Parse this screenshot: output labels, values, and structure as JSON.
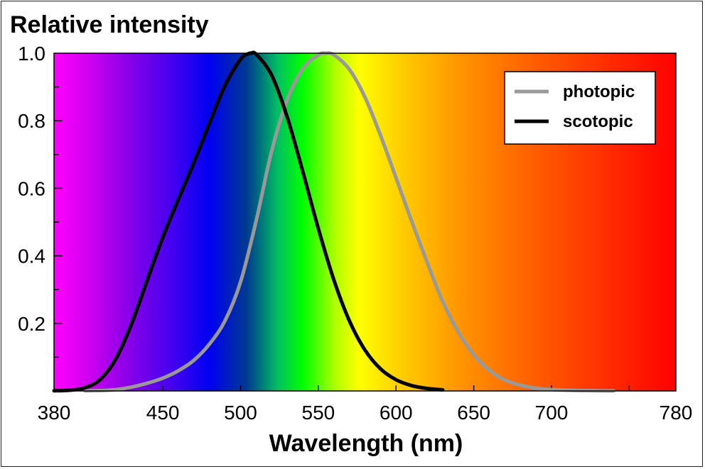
{
  "chart_data": {
    "type": "line",
    "title": "Relative intensity",
    "xlabel": "Wavelength (nm)",
    "ylabel": "Relative intensity",
    "xlim": [
      380,
      780
    ],
    "ylim": [
      0,
      1.0
    ],
    "x_ticks": [
      "380",
      "450",
      "500",
      "550",
      "600",
      "650",
      "700",
      "780"
    ],
    "y_ticks": [
      "0.2",
      "0.4",
      "0.6",
      "0.8",
      "1.0"
    ],
    "legend_position": "top-right",
    "background": "visible spectrum gradient",
    "grid": false,
    "series": [
      {
        "name": "photopic",
        "color": "#999999",
        "x": [
          400,
          410,
          420,
          430,
          440,
          450,
          460,
          470,
          480,
          490,
          500,
          510,
          520,
          530,
          540,
          550,
          555,
          560,
          570,
          580,
          590,
          600,
          610,
          620,
          630,
          640,
          650,
          660,
          670,
          680,
          690,
          700,
          710,
          720,
          730,
          740
        ],
        "y": [
          0.0004,
          0.0012,
          0.004,
          0.0116,
          0.023,
          0.038,
          0.06,
          0.091,
          0.139,
          0.208,
          0.323,
          0.503,
          0.71,
          0.862,
          0.954,
          0.995,
          1.0,
          0.995,
          0.952,
          0.87,
          0.757,
          0.631,
          0.503,
          0.381,
          0.265,
          0.175,
          0.107,
          0.061,
          0.032,
          0.017,
          0.0082,
          0.0041,
          0.0021,
          0.001,
          0.0005,
          0.0002
        ]
      },
      {
        "name": "scotopic",
        "color": "#000000",
        "x": [
          380,
          390,
          400,
          410,
          420,
          430,
          440,
          450,
          460,
          470,
          480,
          490,
          500,
          505,
          507,
          510,
          520,
          530,
          540,
          550,
          560,
          570,
          580,
          590,
          600,
          610,
          620,
          630
        ],
        "y": [
          0.0006,
          0.0022,
          0.0093,
          0.0348,
          0.0966,
          0.1998,
          0.3281,
          0.455,
          0.567,
          0.676,
          0.793,
          0.904,
          0.982,
          0.9985,
          1.0,
          0.997,
          0.935,
          0.811,
          0.65,
          0.481,
          0.3288,
          0.2076,
          0.1212,
          0.0655,
          0.0332,
          0.0159,
          0.0074,
          0.0033
        ]
      }
    ]
  }
}
